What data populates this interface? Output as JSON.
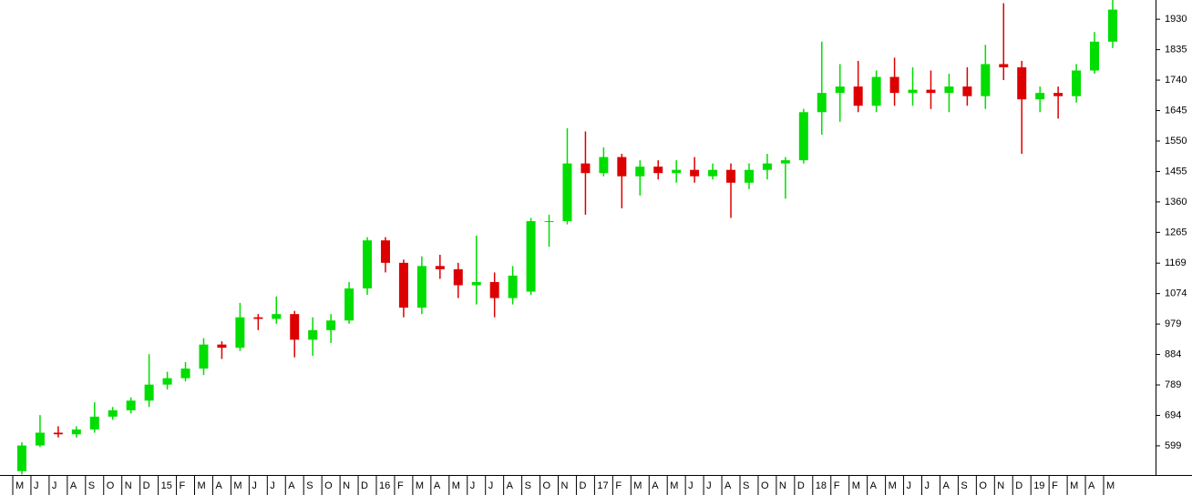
{
  "chart_data": {
    "type": "candlestick",
    "categories": [
      "M",
      "J",
      "J",
      "A",
      "S",
      "O",
      "N",
      "D",
      "15",
      "F",
      "M",
      "A",
      "M",
      "J",
      "J",
      "A",
      "S",
      "O",
      "N",
      "D",
      "16",
      "F",
      "M",
      "A",
      "M",
      "J",
      "J",
      "A",
      "S",
      "O",
      "N",
      "D",
      "17",
      "F",
      "M",
      "A",
      "M",
      "J",
      "J",
      "A",
      "S",
      "O",
      "N",
      "D",
      "18",
      "F",
      "M",
      "A",
      "M",
      "J",
      "J",
      "A",
      "S",
      "O",
      "N",
      "D",
      "19",
      "F",
      "M",
      "A",
      "M"
    ],
    "open": [
      520,
      600,
      640,
      635,
      650,
      690,
      710,
      740,
      790,
      810,
      840,
      915,
      905,
      1000,
      995,
      1010,
      930,
      960,
      990,
      1090,
      1240,
      1170,
      1030,
      1160,
      1150,
      1100,
      1110,
      1060,
      1080,
      1300,
      1300,
      1480,
      1450,
      1500,
      1440,
      1470,
      1450,
      1460,
      1440,
      1460,
      1420,
      1460,
      1480,
      1490,
      1640,
      1700,
      1720,
      1660,
      1750,
      1700,
      1710,
      1700,
      1720,
      1690,
      1790,
      1780,
      1680,
      1700,
      1690,
      1770,
      1860
    ],
    "high": [
      610,
      695,
      660,
      660,
      735,
      720,
      750,
      885,
      830,
      860,
      935,
      925,
      1045,
      1010,
      1065,
      1020,
      1000,
      1010,
      1110,
      1250,
      1250,
      1180,
      1190,
      1195,
      1170,
      1255,
      1140,
      1160,
      1310,
      1320,
      1590,
      1580,
      1530,
      1510,
      1490,
      1490,
      1490,
      1500,
      1480,
      1480,
      1480,
      1510,
      1500,
      1650,
      1860,
      1790,
      1800,
      1770,
      1810,
      1780,
      1770,
      1760,
      1780,
      1850,
      1980,
      1800,
      1720,
      1720,
      1790,
      1890,
      1990
    ],
    "low": [
      510,
      595,
      625,
      625,
      640,
      680,
      700,
      720,
      775,
      800,
      820,
      870,
      895,
      960,
      980,
      875,
      880,
      920,
      980,
      1070,
      1140,
      1000,
      1010,
      1120,
      1060,
      1040,
      1000,
      1040,
      1070,
      1220,
      1290,
      1320,
      1440,
      1340,
      1380,
      1430,
      1420,
      1420,
      1430,
      1310,
      1400,
      1430,
      1370,
      1480,
      1570,
      1610,
      1640,
      1640,
      1660,
      1660,
      1650,
      1640,
      1660,
      1650,
      1740,
      1510,
      1640,
      1620,
      1670,
      1760,
      1840
    ],
    "close": [
      600,
      640,
      635,
      650,
      690,
      710,
      740,
      790,
      810,
      840,
      915,
      905,
      1000,
      995,
      1010,
      930,
      960,
      990,
      1090,
      1240,
      1170,
      1030,
      1160,
      1150,
      1100,
      1110,
      1060,
      1130,
      1300,
      1300,
      1480,
      1450,
      1500,
      1440,
      1470,
      1450,
      1460,
      1440,
      1460,
      1420,
      1460,
      1480,
      1490,
      1640,
      1700,
      1720,
      1660,
      1750,
      1700,
      1710,
      1700,
      1720,
      1690,
      1790,
      1780,
      1680,
      1700,
      1690,
      1770,
      1860,
      1960
    ],
    "up_color": "#00dd00",
    "down_color": "#dd0000",
    "ylim": [
      508,
      1990
    ],
    "yticks": [
      599,
      694,
      789,
      884,
      979,
      1074,
      1169,
      1265,
      1360,
      1455,
      1550,
      1645,
      1740,
      1835,
      1930
    ]
  }
}
